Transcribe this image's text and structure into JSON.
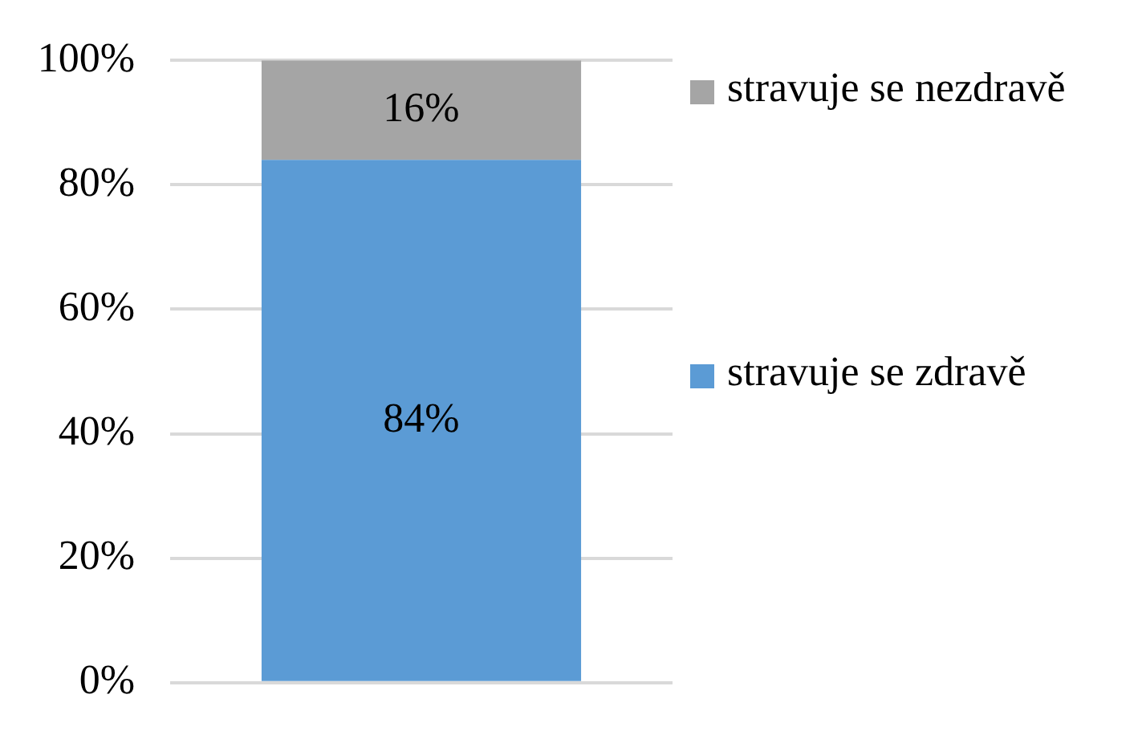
{
  "chart_data": {
    "type": "bar",
    "stacked": true,
    "categories": [
      null
    ],
    "series": [
      {
        "name": "stravuje se zdravě",
        "color": "#5b9bd5",
        "values": [
          84
        ],
        "value_labels": [
          "84%"
        ]
      },
      {
        "name": "stravuje se nezdravě",
        "color": "#a5a5a5",
        "values": [
          16
        ],
        "value_labels": [
          "16%"
        ]
      }
    ],
    "ylim": [
      0,
      100
    ],
    "yticks": [
      {
        "value": 0,
        "label": "0%"
      },
      {
        "value": 20,
        "label": "20%"
      },
      {
        "value": 40,
        "label": "40%"
      },
      {
        "value": 60,
        "label": "60%"
      },
      {
        "value": 80,
        "label": "80%"
      },
      {
        "value": 100,
        "label": "100%"
      }
    ],
    "grid": "y",
    "legend": "right",
    "tick_labels": "y"
  }
}
